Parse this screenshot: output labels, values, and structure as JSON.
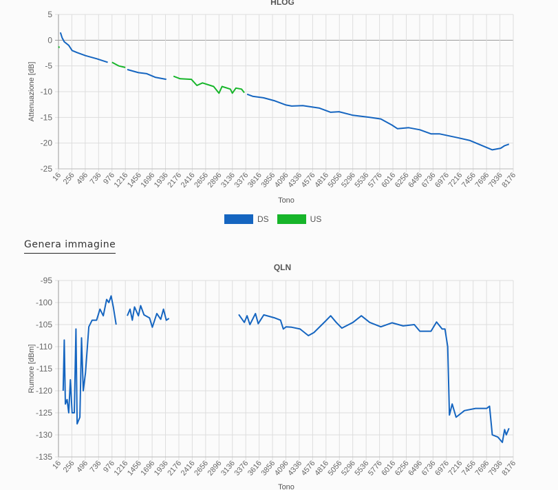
{
  "generate_image_link": "Genera immagine",
  "colors": {
    "ds": "#1565c0",
    "us": "#17b52a"
  },
  "chart_data": [
    {
      "type": "line",
      "title": "HLOG",
      "xlabel": "Tono",
      "ylabel": "Attenuazione [dB]",
      "xlim": [
        16,
        8176
      ],
      "ylim": [
        -25,
        5
      ],
      "yticks": [
        "5",
        "0",
        "-5",
        "-10",
        "-15",
        "-20",
        "-25"
      ],
      "xticks": [
        "16",
        "256",
        "496",
        "736",
        "976",
        "1216",
        "1456",
        "1696",
        "1936",
        "2176",
        "2416",
        "2656",
        "2896",
        "3136",
        "3376",
        "3616",
        "3856",
        "4096",
        "4336",
        "4576",
        "4816",
        "5056",
        "5296",
        "5536",
        "5776",
        "6016",
        "6256",
        "6496",
        "6736",
        "6976",
        "7216",
        "7456",
        "7696",
        "7936",
        "8176"
      ],
      "grid": true,
      "legend": {
        "placement": "bottom-center",
        "entries": [
          "DS",
          "US"
        ]
      },
      "series": [
        {
          "name": "DS",
          "color": "#1565c0",
          "segments": [
            [
              [
                50,
                1.5
              ],
              [
                80,
                0.5
              ],
              [
                120,
                -0.3
              ],
              [
                200,
                -1
              ],
              [
                260,
                -2
              ],
              [
                350,
                -2.4
              ],
              [
                500,
                -3
              ],
              [
                700,
                -3.6
              ],
              [
                900,
                -4.3
              ]
            ],
            [
              [
                1250,
                -5.7
              ],
              [
                1450,
                -6.3
              ],
              [
                1600,
                -6.5
              ],
              [
                1750,
                -7.2
              ],
              [
                1950,
                -7.6
              ]
            ],
            [
              [
                3400,
                -10.5
              ],
              [
                3500,
                -10.9
              ],
              [
                3700,
                -11.2
              ],
              [
                3900,
                -11.8
              ],
              [
                4100,
                -12.6
              ],
              [
                4200,
                -12.8
              ],
              [
                4400,
                -12.7
              ],
              [
                4700,
                -13.2
              ],
              [
                4900,
                -14
              ],
              [
                5050,
                -13.9
              ],
              [
                5300,
                -14.6
              ],
              [
                5600,
                -15
              ],
              [
                5800,
                -15.3
              ],
              [
                6000,
                -16.5
              ],
              [
                6100,
                -17.2
              ],
              [
                6300,
                -17
              ],
              [
                6500,
                -17.4
              ],
              [
                6700,
                -18.2
              ],
              [
                6850,
                -18.2
              ],
              [
                7200,
                -19
              ],
              [
                7400,
                -19.5
              ],
              [
                7600,
                -20.4
              ],
              [
                7800,
                -21.3
              ],
              [
                7950,
                -21
              ],
              [
                8020,
                -20.5
              ],
              [
                8100,
                -20.2
              ]
            ]
          ]
        },
        {
          "name": "US",
          "color": "#17b52a",
          "segments": [
            [
              [
                20,
                -1.2
              ],
              [
                30,
                -1.5
              ]
            ],
            [
              [
                976,
                -4.3
              ],
              [
                1100,
                -5
              ],
              [
                1216,
                -5.3
              ]
            ],
            [
              [
                2080,
                -7
              ],
              [
                2200,
                -7.5
              ],
              [
                2400,
                -7.6
              ],
              [
                2500,
                -8.8
              ],
              [
                2600,
                -8.3
              ],
              [
                2800,
                -9
              ],
              [
                2896,
                -10.3
              ],
              [
                2950,
                -9
              ],
              [
                3100,
                -9.5
              ],
              [
                3136,
                -10.3
              ],
              [
                3200,
                -9.3
              ],
              [
                3300,
                -9.5
              ],
              [
                3350,
                -10.2
              ]
            ]
          ]
        }
      ]
    },
    {
      "type": "line",
      "title": "QLN",
      "xlabel": "Tono",
      "ylabel": "Rumore [dBm]",
      "xlim": [
        16,
        8176
      ],
      "ylim": [
        -135,
        -95
      ],
      "yticks": [
        "-95",
        "-100",
        "-105",
        "-110",
        "-115",
        "-120",
        "-125",
        "-130",
        "-135"
      ],
      "xticks": [
        "16",
        "256",
        "496",
        "736",
        "976",
        "1216",
        "1456",
        "1696",
        "1936",
        "2176",
        "2416",
        "2656",
        "2896",
        "3136",
        "3376",
        "3616",
        "3856",
        "4096",
        "4336",
        "4576",
        "4816",
        "5056",
        "5296",
        "5536",
        "5776",
        "6016",
        "6256",
        "6496",
        "6736",
        "6976",
        "7216",
        "7456",
        "7696",
        "7936",
        "8176"
      ],
      "grid": true,
      "series": [
        {
          "name": "DS",
          "color": "#1565c0",
          "segments": [
            [
              [
                100,
                -120
              ],
              [
                120,
                -108.5
              ],
              [
                140,
                -123
              ],
              [
                170,
                -122
              ],
              [
                200,
                -125
              ],
              [
                230,
                -117.5
              ],
              [
                260,
                -125
              ],
              [
                300,
                -125
              ],
              [
                330,
                -106
              ],
              [
                350,
                -127.5
              ],
              [
                400,
                -126
              ],
              [
                430,
                -108
              ],
              [
                460,
                -120
              ],
              [
                500,
                -116
              ],
              [
                560,
                -105.5
              ],
              [
                620,
                -104
              ],
              [
                700,
                -104
              ],
              [
                760,
                -101.5
              ],
              [
                820,
                -103
              ],
              [
                880,
                -99.3
              ],
              [
                920,
                -100
              ],
              [
                960,
                -98.5
              ],
              [
                1000,
                -101
              ],
              [
                1050,
                -105
              ]
            ],
            [
              [
                1250,
                -103
              ],
              [
                1300,
                -101.5
              ],
              [
                1340,
                -104
              ],
              [
                1380,
                -101
              ],
              [
                1450,
                -103
              ],
              [
                1490,
                -100.7
              ],
              [
                1550,
                -102.8
              ],
              [
                1650,
                -103.5
              ],
              [
                1700,
                -105.6
              ],
              [
                1780,
                -102.5
              ],
              [
                1850,
                -103.8
              ],
              [
                1900,
                -101.5
              ],
              [
                1950,
                -104
              ],
              [
                2000,
                -103.6
              ]
            ],
            [
              [
                3250,
                -102.7
              ],
              [
                3350,
                -104.5
              ],
              [
                3400,
                -103
              ],
              [
                3450,
                -105
              ],
              [
                3550,
                -102.5
              ],
              [
                3600,
                -104.8
              ],
              [
                3700,
                -102.8
              ],
              [
                3900,
                -103.5
              ],
              [
                4000,
                -104
              ],
              [
                4050,
                -106
              ],
              [
                4100,
                -105.5
              ],
              [
                4200,
                -105.6
              ],
              [
                4350,
                -106
              ],
              [
                4500,
                -107.5
              ],
              [
                4600,
                -106.8
              ],
              [
                4800,
                -104.3
              ],
              [
                4900,
                -103
              ],
              [
                5000,
                -104.5
              ],
              [
                5100,
                -105.8
              ],
              [
                5300,
                -104.5
              ],
              [
                5450,
                -103
              ],
              [
                5600,
                -104.5
              ],
              [
                5800,
                -105.5
              ],
              [
                6000,
                -104.6
              ],
              [
                6200,
                -105.3
              ],
              [
                6400,
                -105
              ],
              [
                6500,
                -106.5
              ],
              [
                6700,
                -106.5
              ],
              [
                6800,
                -104.4
              ],
              [
                6900,
                -106
              ],
              [
                6950,
                -106
              ],
              [
                7000,
                -110
              ],
              [
                7030,
                -125.5
              ],
              [
                7080,
                -123
              ],
              [
                7150,
                -126
              ],
              [
                7300,
                -124.5
              ],
              [
                7500,
                -124
              ],
              [
                7700,
                -124
              ],
              [
                7750,
                -123.5
              ],
              [
                7800,
                -130
              ],
              [
                7900,
                -130.5
              ],
              [
                7980,
                -131.7
              ],
              [
                8020,
                -128.8
              ],
              [
                8050,
                -130
              ],
              [
                8100,
                -128.5
              ]
            ]
          ]
        }
      ]
    }
  ]
}
